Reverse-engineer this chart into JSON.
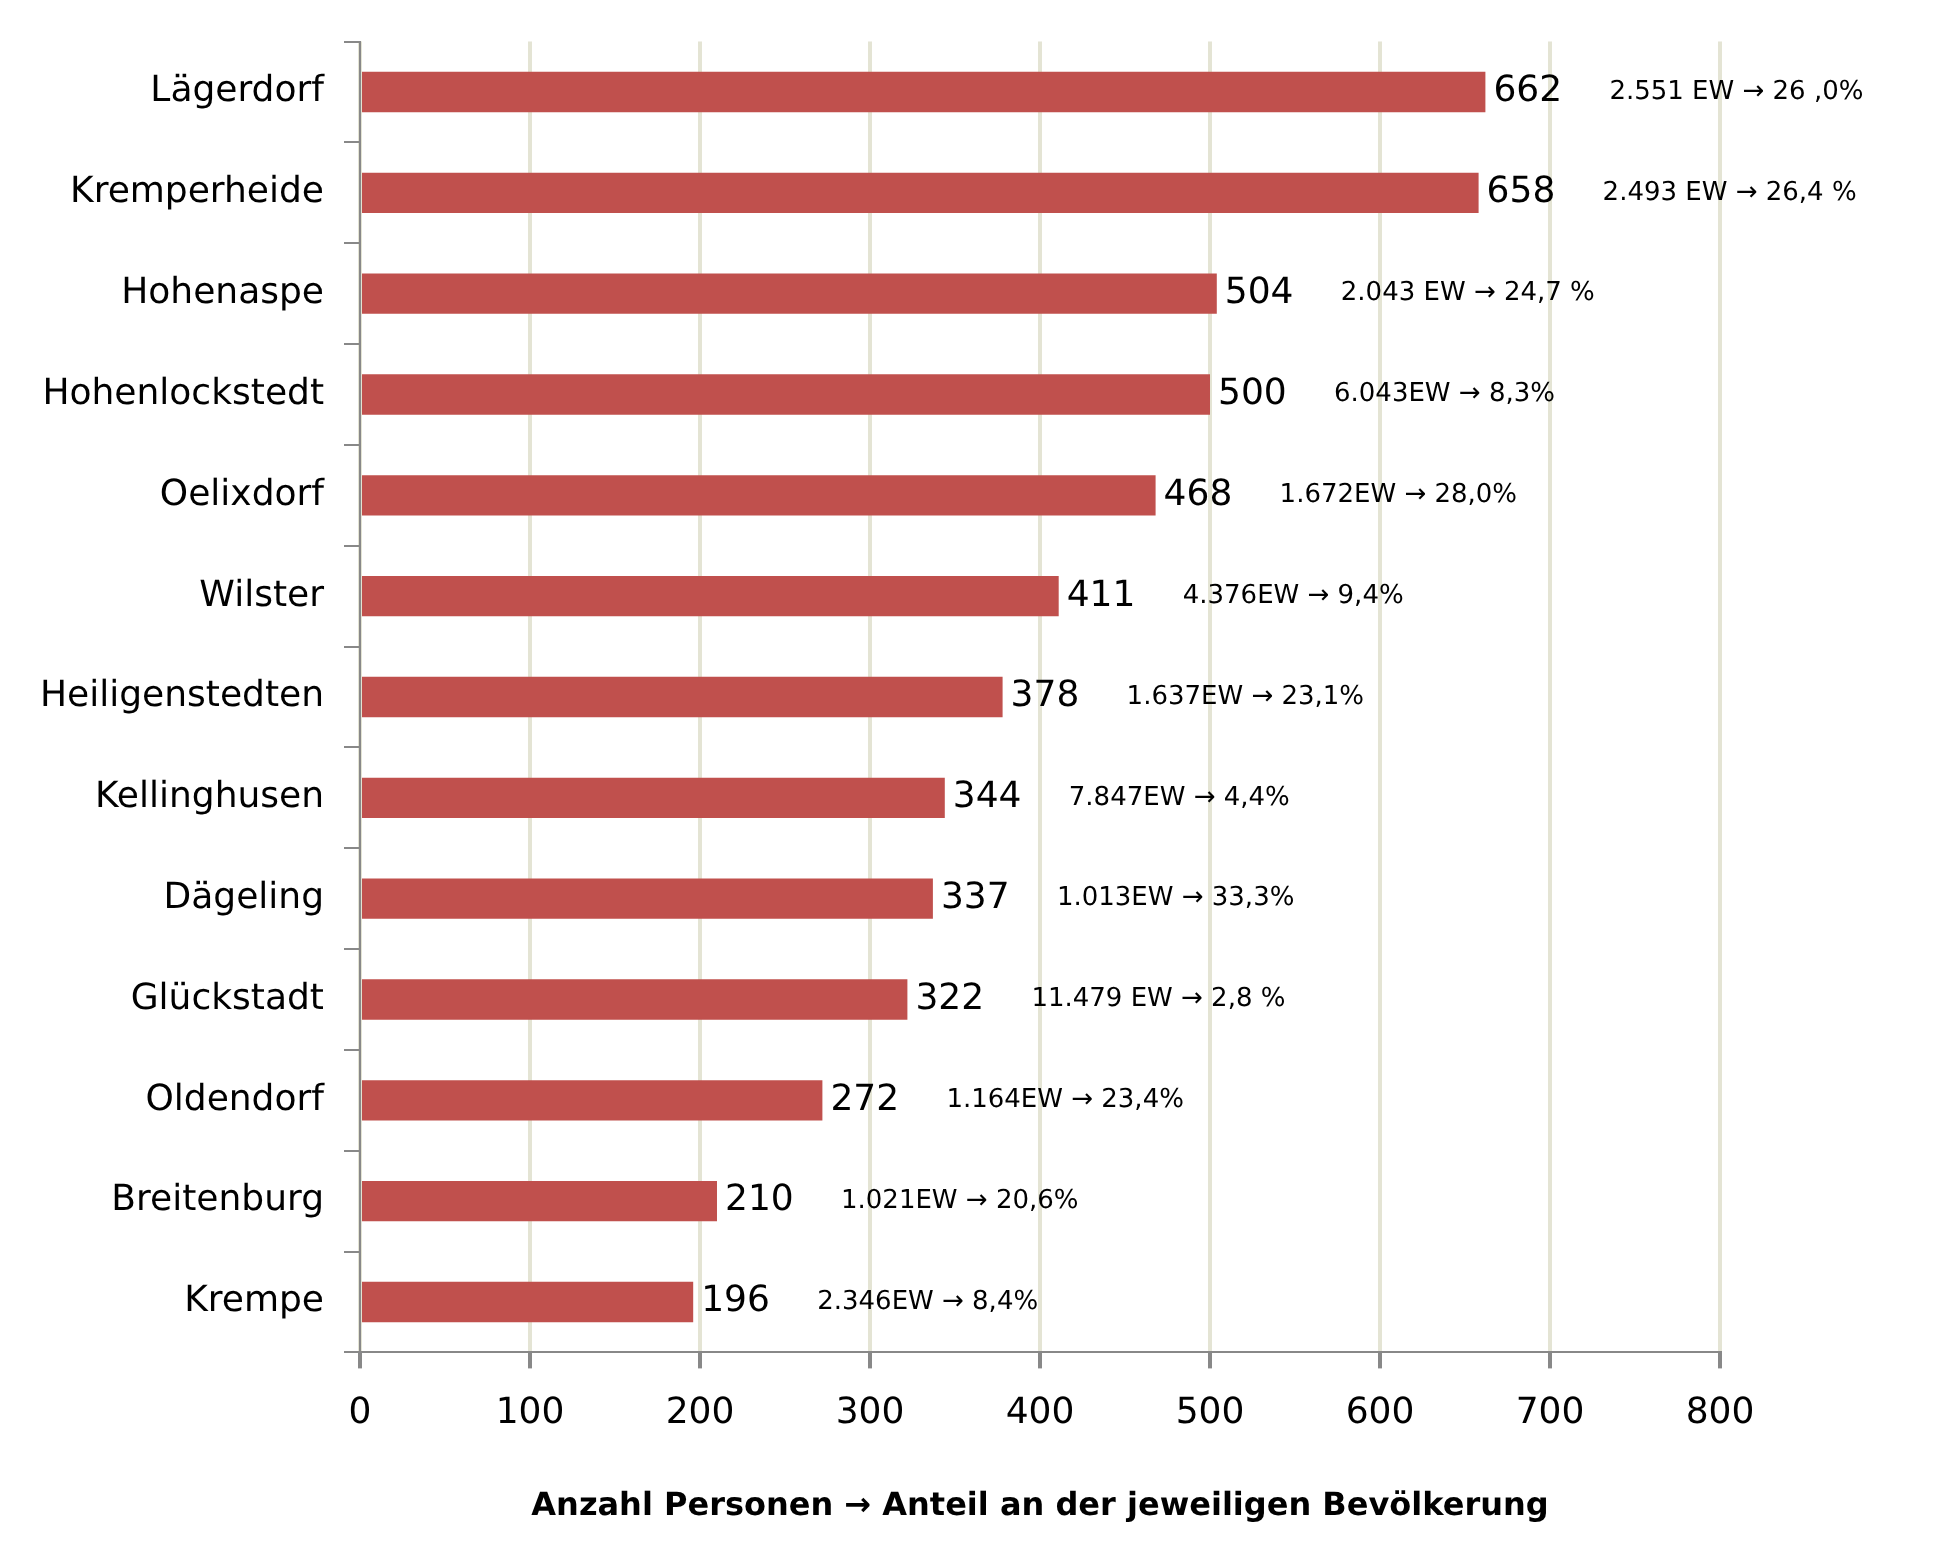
{
  "chart_data": {
    "type": "bar",
    "orientation": "horizontal",
    "xlabel": "Anzahl Personen → Anteil an der jeweiligen Bevölkerung",
    "categories": [
      "Lägerdorf",
      "Kremperheide",
      "Hohenaspe",
      "Hohenlockstedt",
      "Oelixdorf",
      "Wilster",
      "Heiligenstedten",
      "Kellinghusen",
      "Dägeling",
      "Glückstadt",
      "Oldendorf",
      "Breitenburg",
      "Krempe"
    ],
    "values": [
      662,
      658,
      504,
      500,
      468,
      411,
      378,
      344,
      337,
      322,
      272,
      210,
      196
    ],
    "color": "#c0504d",
    "xlim": [
      0,
      800
    ],
    "xticks": [
      0,
      100,
      200,
      300,
      400,
      500,
      600,
      700,
      800
    ],
    "grid": "x",
    "legend": false,
    "data_labels": true,
    "annotations": [
      "2.551 EW → 26 ,0%",
      "2.493 EW → 26,4 %",
      "2.043 EW → 24,7 %",
      "6.043EW → 8,3%",
      "1.672EW → 28,0%",
      "4.376EW → 9,4%",
      "1.637EW → 23,1%",
      "7.847EW → 4,4%",
      "1.013EW → 33,3%",
      "11.479 EW → 2,8 %",
      "1.164EW → 23,4%",
      "1.021EW → 20,6%",
      "2.346EW → 8,4%"
    ]
  }
}
